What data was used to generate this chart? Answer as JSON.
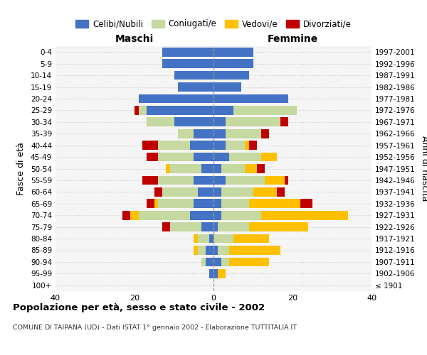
{
  "age_groups": [
    "100+",
    "95-99",
    "90-94",
    "85-89",
    "80-84",
    "75-79",
    "70-74",
    "65-69",
    "60-64",
    "55-59",
    "50-54",
    "45-49",
    "40-44",
    "35-39",
    "30-34",
    "25-29",
    "20-24",
    "15-19",
    "10-14",
    "5-9",
    "0-4"
  ],
  "birth_years": [
    "≤ 1901",
    "1902-1906",
    "1907-1911",
    "1912-1916",
    "1917-1921",
    "1922-1926",
    "1927-1931",
    "1932-1936",
    "1937-1941",
    "1942-1946",
    "1947-1951",
    "1952-1956",
    "1957-1961",
    "1962-1966",
    "1967-1971",
    "1972-1976",
    "1977-1981",
    "1982-1986",
    "1987-1991",
    "1992-1996",
    "1997-2001"
  ],
  "males": {
    "celibi": [
      0,
      1,
      2,
      2,
      1,
      3,
      6,
      5,
      4,
      5,
      3,
      5,
      6,
      5,
      10,
      17,
      19,
      9,
      10,
      13,
      13
    ],
    "coniugati": [
      0,
      0,
      1,
      2,
      3,
      8,
      13,
      9,
      9,
      9,
      8,
      9,
      8,
      4,
      7,
      2,
      0,
      0,
      0,
      0,
      0
    ],
    "vedovi": [
      0,
      0,
      0,
      1,
      1,
      0,
      2,
      1,
      0,
      0,
      1,
      0,
      0,
      0,
      0,
      0,
      0,
      0,
      0,
      0,
      0
    ],
    "divorziati": [
      0,
      0,
      0,
      0,
      0,
      2,
      2,
      2,
      2,
      4,
      0,
      3,
      4,
      0,
      0,
      1,
      0,
      0,
      0,
      0,
      0
    ]
  },
  "females": {
    "nubili": [
      0,
      1,
      2,
      1,
      0,
      1,
      2,
      2,
      2,
      3,
      2,
      4,
      3,
      3,
      3,
      5,
      19,
      7,
      9,
      10,
      10
    ],
    "coniugate": [
      0,
      0,
      2,
      3,
      5,
      8,
      10,
      7,
      8,
      10,
      6,
      8,
      5,
      9,
      14,
      16,
      0,
      0,
      0,
      0,
      0
    ],
    "vedove": [
      0,
      2,
      10,
      13,
      9,
      15,
      22,
      13,
      6,
      5,
      3,
      4,
      1,
      0,
      0,
      0,
      0,
      0,
      0,
      0,
      0
    ],
    "divorziate": [
      0,
      0,
      0,
      0,
      0,
      0,
      0,
      3,
      2,
      1,
      2,
      0,
      2,
      2,
      2,
      0,
      0,
      0,
      0,
      0,
      0
    ]
  },
  "colors": {
    "celibi": "#4472c4",
    "coniugati": "#c5d9a0",
    "vedovi": "#ffc000",
    "divorziati": "#c00000"
  },
  "title": "Popolazione per età, sesso e stato civile - 2002",
  "subtitle": "COMUNE DI TAIPANA (UD) - Dati ISTAT 1° gennaio 2002 - Elaborazione TUTTITALIA.IT",
  "xlabel_left": "Maschi",
  "xlabel_right": "Femmine",
  "ylabel_left": "Fasce di età",
  "ylabel_right": "Anni di nascita",
  "xlim": 40,
  "bg_color": "#ffffff",
  "plot_bg": "#f5f5f5",
  "grid_color": "#cccccc",
  "legend_labels": [
    "Celibi/Nubili",
    "Coniugati/e",
    "Vedovi/e",
    "Divorziati/e"
  ]
}
